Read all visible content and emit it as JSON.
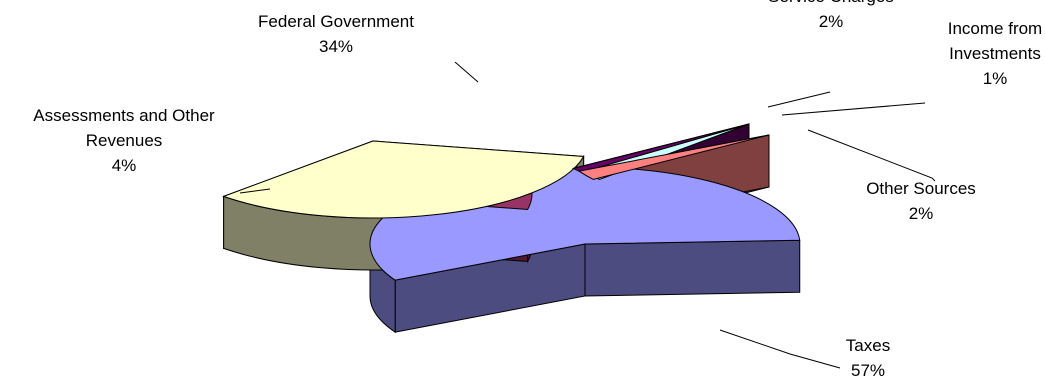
{
  "chart_data": {
    "type": "pie",
    "style": "3d-exploded",
    "title": "",
    "slices": [
      {
        "label": [
          "Taxes"
        ],
        "value": 57,
        "pct_label": "57%",
        "color": "#9999ff",
        "side_color": "#4c4c80"
      },
      {
        "label": [
          "Assessments and Other",
          "Revenues"
        ],
        "value": 4,
        "pct_label": "4%",
        "color": "#993366",
        "side_color": "#4d1a33"
      },
      {
        "label": [
          "Federal Government"
        ],
        "value": 34,
        "pct_label": "34%",
        "color": "#ffffcc",
        "side_color": "#808066"
      },
      {
        "label": [
          "Service Charges"
        ],
        "value": 2,
        "pct_label": "2%",
        "color": "#ccffff",
        "side_color": "#668080"
      },
      {
        "label": [
          "Income from",
          "Investments"
        ],
        "value": 1,
        "pct_label": "1%",
        "color": "#660066",
        "side_color": "#330033"
      },
      {
        "label": [
          "Other Sources"
        ],
        "value": 2,
        "pct_label": "2%",
        "color": "#ff8080",
        "side_color": "#804040"
      }
    ]
  }
}
